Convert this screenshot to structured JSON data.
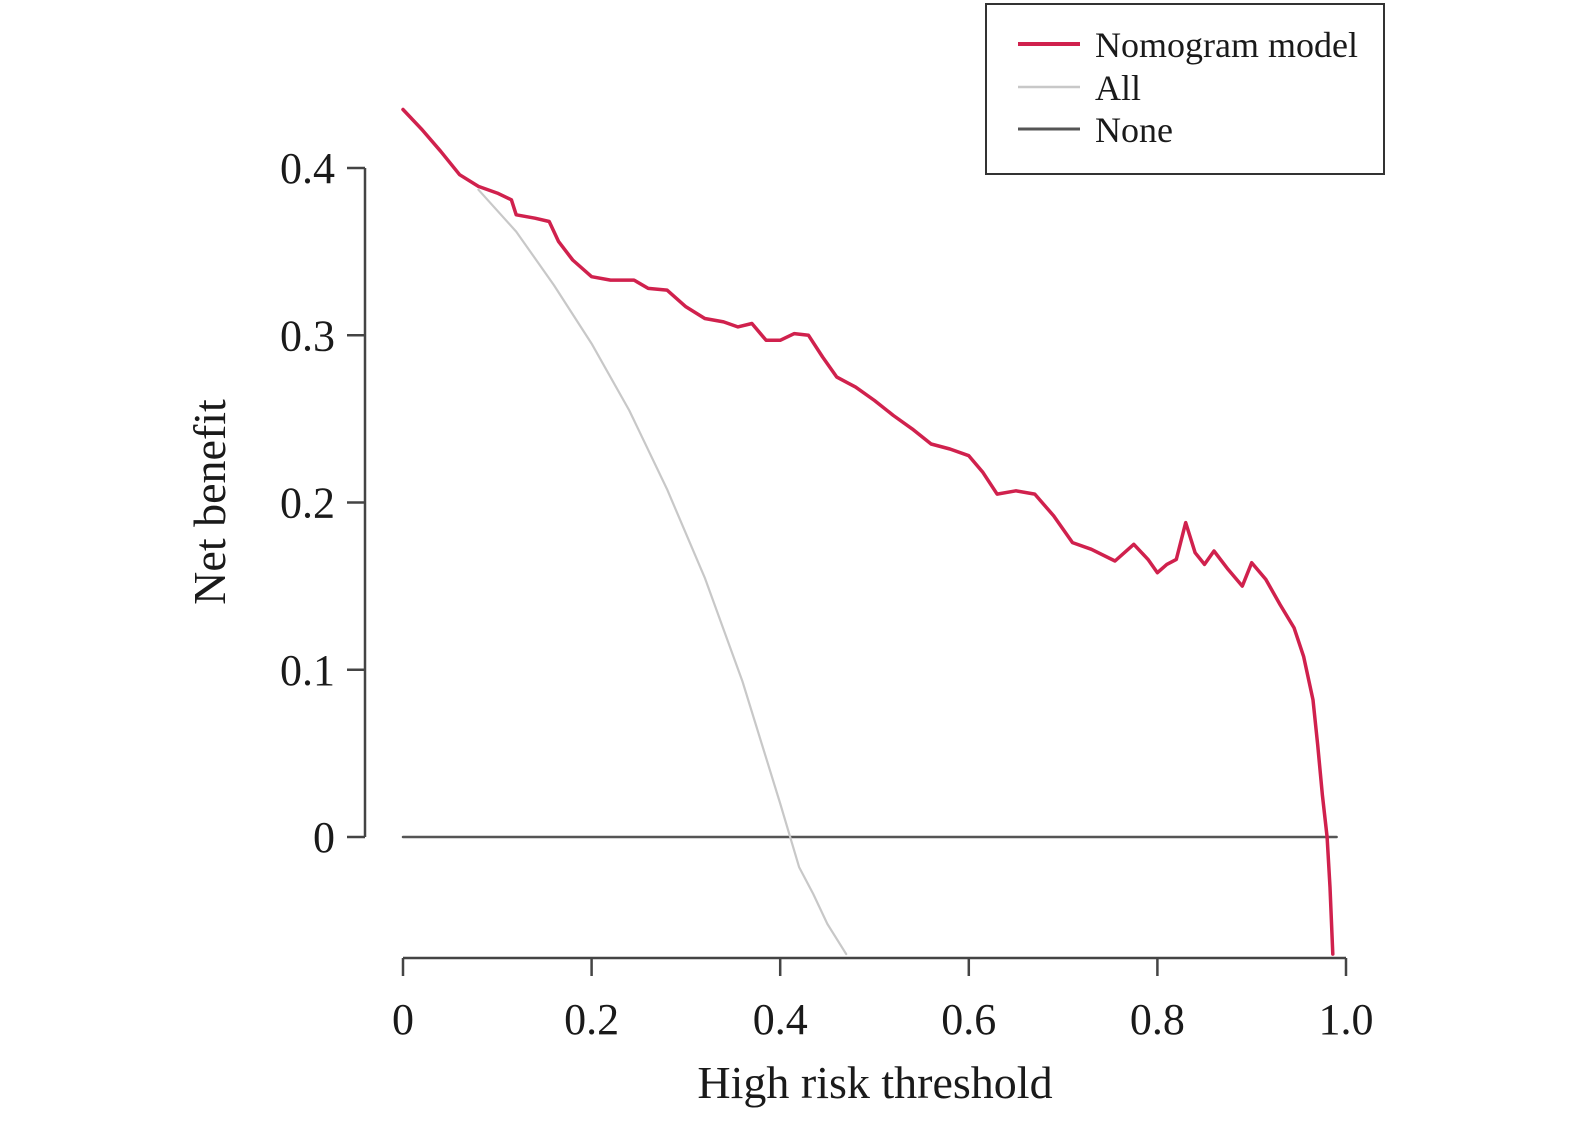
{
  "chart_data": {
    "type": "line",
    "xlabel": "High risk threshold",
    "ylabel": "Net benefit",
    "xlim": [
      0,
      1.0
    ],
    "ylim": [
      -0.07,
      0.4
    ],
    "x_ticks": [
      0,
      0.2,
      0.4,
      0.6,
      0.8,
      1.0
    ],
    "x_tick_labels": [
      "0",
      "0.2",
      "0.4",
      "0.6",
      "0.8",
      "1.0"
    ],
    "y_ticks": [
      0,
      0.1,
      0.2,
      0.3,
      0.4
    ],
    "y_tick_labels": [
      "0",
      "0.1",
      "0.2",
      "0.3",
      "0.4"
    ],
    "grid": false,
    "legend_position": "top-right",
    "series": [
      {
        "name": "Nomogram model",
        "color": "#d0214d",
        "x": [
          0.0,
          0.02,
          0.04,
          0.06,
          0.08,
          0.1,
          0.115,
          0.12,
          0.14,
          0.155,
          0.165,
          0.18,
          0.2,
          0.22,
          0.245,
          0.26,
          0.28,
          0.3,
          0.32,
          0.34,
          0.355,
          0.37,
          0.385,
          0.4,
          0.415,
          0.43,
          0.445,
          0.46,
          0.48,
          0.5,
          0.52,
          0.54,
          0.56,
          0.58,
          0.6,
          0.615,
          0.63,
          0.65,
          0.67,
          0.69,
          0.71,
          0.73,
          0.755,
          0.775,
          0.79,
          0.8,
          0.81,
          0.82,
          0.83,
          0.84,
          0.85,
          0.86,
          0.875,
          0.89,
          0.9,
          0.915,
          0.93,
          0.945,
          0.955,
          0.965,
          0.97,
          0.975,
          0.98,
          0.983,
          0.986
        ],
        "y": [
          0.435,
          0.423,
          0.41,
          0.396,
          0.389,
          0.385,
          0.381,
          0.372,
          0.37,
          0.368,
          0.356,
          0.345,
          0.335,
          0.333,
          0.333,
          0.328,
          0.327,
          0.317,
          0.31,
          0.308,
          0.305,
          0.307,
          0.297,
          0.297,
          0.301,
          0.3,
          0.287,
          0.275,
          0.269,
          0.261,
          0.252,
          0.244,
          0.235,
          0.232,
          0.228,
          0.218,
          0.205,
          0.207,
          0.205,
          0.192,
          0.176,
          0.172,
          0.165,
          0.175,
          0.166,
          0.158,
          0.163,
          0.166,
          0.188,
          0.17,
          0.163,
          0.171,
          0.16,
          0.15,
          0.164,
          0.154,
          0.139,
          0.125,
          0.108,
          0.082,
          0.055,
          0.025,
          0.0,
          -0.03,
          -0.07
        ]
      },
      {
        "name": "All",
        "color": "#c8c8c8",
        "x": [
          0.08,
          0.12,
          0.16,
          0.2,
          0.24,
          0.28,
          0.32,
          0.36,
          0.4,
          0.42,
          0.435,
          0.45,
          0.47
        ],
        "y": [
          0.387,
          0.362,
          0.33,
          0.295,
          0.255,
          0.208,
          0.155,
          0.093,
          0.02,
          -0.018,
          -0.034,
          -0.052,
          -0.07
        ]
      },
      {
        "name": "None",
        "color": "#555555",
        "x": [
          0,
          0.99
        ],
        "y": [
          0,
          0
        ]
      }
    ]
  }
}
